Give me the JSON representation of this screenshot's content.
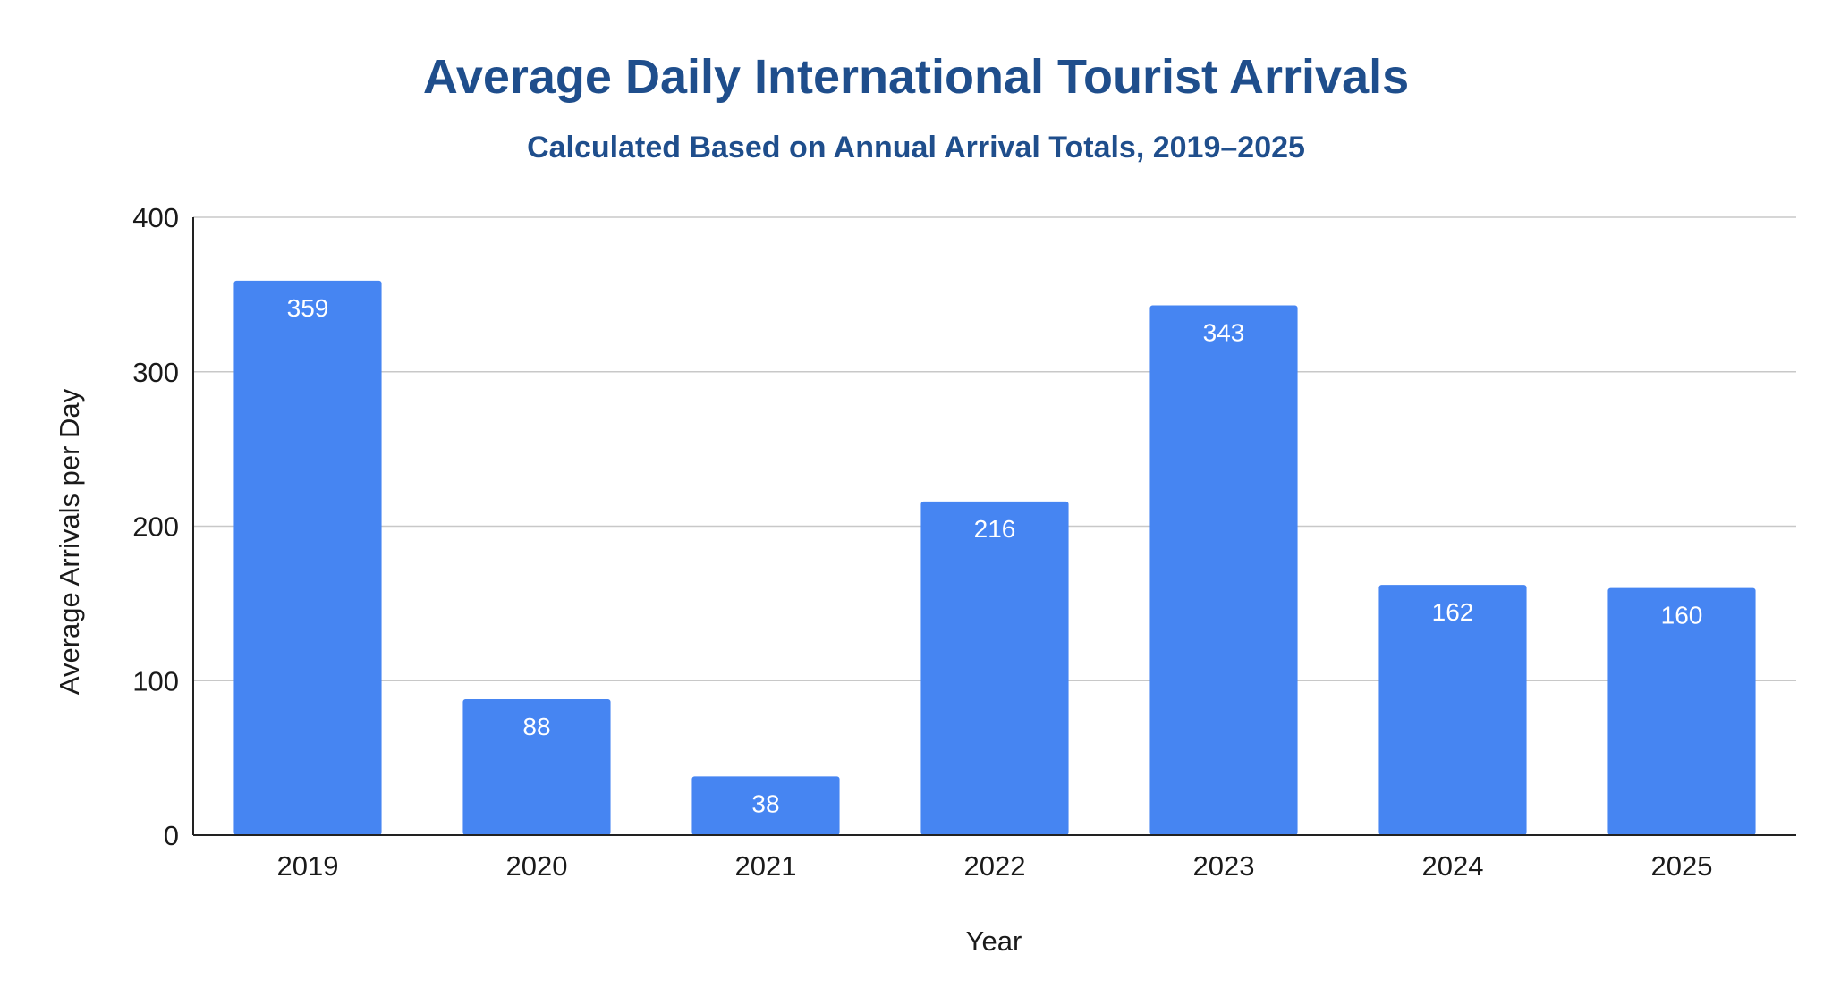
{
  "colors": {
    "title": "#1f4e8c",
    "bar": "#4685f2",
    "grid": "#c8c8c8",
    "axis": "#222222",
    "data_label": "#ffffff",
    "text": "#1a1a1a"
  },
  "chart_data": {
    "type": "bar",
    "title": "Average Daily International Tourist Arrivals",
    "subtitle": "Calculated Based on Annual Arrival Totals, 2019–2025",
    "xlabel": "Year",
    "ylabel": "Average Arrivals per Day",
    "categories": [
      "2019",
      "2020",
      "2021",
      "2022",
      "2023",
      "2024",
      "2025"
    ],
    "values": [
      359,
      88,
      38,
      216,
      343,
      162,
      160
    ],
    "data_labels": [
      "359",
      "88",
      "38",
      "216",
      "343",
      "162",
      "160"
    ],
    "ylim": [
      0,
      400
    ],
    "yticks": [
      0,
      100,
      200,
      300,
      400
    ],
    "ytick_labels": [
      "0",
      "100",
      "200",
      "300",
      "400"
    ],
    "grid": true,
    "legend": "none"
  }
}
